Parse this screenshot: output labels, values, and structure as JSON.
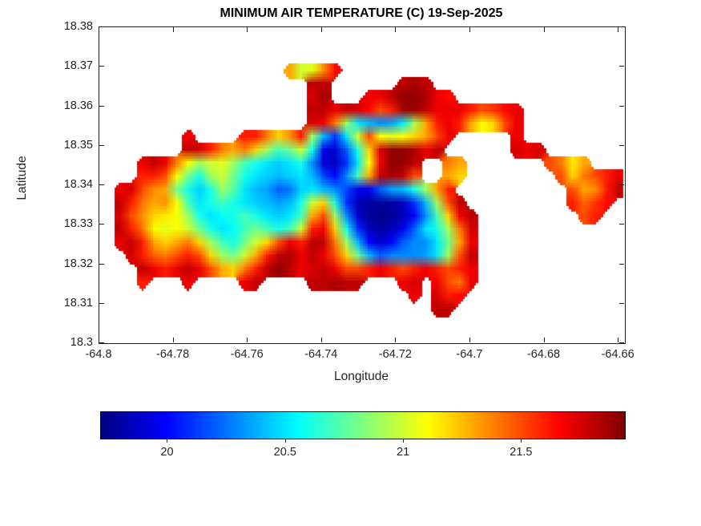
{
  "chart_data": {
    "type": "heatmap",
    "title": "MINIMUM AIR TEMPERATURE (C) 19-Sep-2025",
    "xlabel": "Longitude",
    "ylabel": "Latitude",
    "units": "C",
    "xlim": [
      -64.8,
      -64.6583
    ],
    "ylim": [
      18.3,
      18.38
    ],
    "grid_lines": "off",
    "xticks": {
      "values": [
        -64.8,
        -64.78,
        -64.76,
        -64.74,
        -64.72,
        -64.7,
        -64.68,
        -64.66
      ],
      "labels": [
        "-64.8",
        "-64.78",
        "-64.76",
        "-64.74",
        "-64.72",
        "-64.7",
        "-64.68",
        "-64.66"
      ]
    },
    "yticks": {
      "values": [
        18.3,
        18.31,
        18.32,
        18.33,
        18.34,
        18.35,
        18.36,
        18.37,
        18.38
      ],
      "labels": [
        "18.3",
        "18.31",
        "18.32",
        "18.33",
        "18.34",
        "18.35",
        "18.36",
        "18.37",
        "18.38"
      ]
    },
    "colorbar": {
      "orientation": "horizontal",
      "colormap": "jet",
      "range": [
        19.72,
        21.94
      ],
      "ticks": {
        "values": [
          20,
          20.5,
          21,
          21.5
        ],
        "labels": [
          "20",
          "20.5",
          "21",
          "21.5"
        ]
      }
    },
    "grid": {
      "comment": "Coarse sample of the temperature field (deg C); null = ocean (no data). Row 0 = north (lat_start), col 0 = west (lon_start).",
      "lon_start": -64.7975,
      "dlon": 0.00305,
      "lat_start": 18.3725,
      "dlat": 0.00335,
      "ncols": 46,
      "nrows": 22,
      "values": [
        [
          null,
          null,
          null,
          null,
          null,
          null,
          null,
          null,
          null,
          null,
          null,
          null,
          null,
          null,
          null,
          null,
          null,
          null,
          null,
          null,
          null,
          null,
          null,
          null,
          null,
          null,
          null,
          null,
          null,
          null,
          null,
          null,
          null,
          null,
          null,
          null,
          null,
          null,
          null,
          null,
          null,
          null,
          null,
          null,
          null,
          null
        ],
        [
          null,
          null,
          null,
          null,
          null,
          null,
          null,
          null,
          null,
          null,
          null,
          null,
          null,
          null,
          null,
          null,
          21.3,
          21.0,
          21.05,
          21.35,
          21.65,
          null,
          null,
          null,
          null,
          null,
          null,
          null,
          null,
          null,
          null,
          null,
          null,
          null,
          null,
          null,
          null,
          null,
          null,
          null,
          null,
          null,
          null,
          null,
          null,
          null
        ],
        [
          null,
          null,
          null,
          null,
          null,
          null,
          null,
          null,
          null,
          null,
          null,
          null,
          null,
          null,
          null,
          null,
          null,
          null,
          21.8,
          21.8,
          null,
          null,
          null,
          null,
          null,
          null,
          21.8,
          21.85,
          21.8,
          null,
          null,
          null,
          null,
          null,
          null,
          null,
          null,
          null,
          null,
          null,
          null,
          null,
          null,
          null,
          null,
          null
        ],
        [
          null,
          null,
          null,
          null,
          null,
          null,
          null,
          null,
          null,
          null,
          null,
          null,
          null,
          null,
          null,
          null,
          null,
          null,
          21.75,
          21.85,
          null,
          null,
          null,
          21.7,
          21.7,
          21.8,
          21.9,
          21.9,
          21.85,
          21.7,
          21.65,
          null,
          null,
          null,
          null,
          null,
          null,
          null,
          null,
          null,
          null,
          null,
          null,
          null,
          null,
          null
        ],
        [
          null,
          null,
          null,
          null,
          null,
          null,
          null,
          null,
          null,
          null,
          null,
          null,
          null,
          null,
          null,
          null,
          null,
          null,
          21.8,
          21.8,
          21.7,
          21.8,
          21.75,
          21.65,
          21.5,
          21.6,
          21.85,
          21.9,
          21.8,
          21.7,
          21.7,
          21.7,
          21.6,
          21.5,
          21.55,
          21.65,
          21.7,
          null,
          null,
          null,
          null,
          null,
          null,
          null,
          null,
          null
        ],
        [
          null,
          null,
          null,
          null,
          null,
          null,
          null,
          null,
          null,
          null,
          null,
          null,
          null,
          null,
          null,
          null,
          null,
          null,
          21.75,
          21.7,
          21.4,
          20.9,
          20.5,
          20.4,
          20.3,
          20.35,
          20.5,
          20.9,
          21.3,
          21.6,
          21.7,
          21.6,
          21.3,
          21.1,
          21.2,
          21.5,
          21.7,
          null,
          null,
          null,
          null,
          null,
          null,
          null,
          null,
          null
        ],
        [
          null,
          null,
          null,
          null,
          null,
          null,
          null,
          21.7,
          null,
          null,
          null,
          null,
          21.6,
          21.6,
          21.4,
          21.2,
          21.35,
          21.6,
          20.9,
          20.4,
          20.1,
          20.5,
          21.0,
          21.5,
          21.1,
          21.05,
          21.1,
          21.2,
          21.3,
          21.5,
          21.7,
          null,
          null,
          null,
          null,
          null,
          21.7,
          null,
          null,
          null,
          null,
          null,
          null,
          null,
          null,
          null
        ],
        [
          null,
          null,
          null,
          null,
          null,
          null,
          null,
          21.8,
          21.75,
          21.6,
          21.4,
          21.3,
          21.4,
          21.2,
          20.9,
          20.7,
          20.8,
          21.0,
          20.6,
          19.95,
          19.9,
          20.2,
          20.6,
          21.2,
          21.75,
          21.9,
          21.9,
          21.85,
          21.7,
          21.8,
          null,
          null,
          null,
          null,
          null,
          null,
          21.75,
          21.7,
          21.75,
          null,
          null,
          null,
          null,
          null,
          null,
          null
        ],
        [
          null,
          null,
          null,
          21.7,
          21.8,
          21.7,
          21.4,
          21.1,
          20.9,
          21.0,
          21.05,
          20.9,
          20.7,
          20.6,
          20.5,
          20.45,
          20.5,
          20.6,
          20.3,
          19.9,
          19.85,
          20.1,
          20.5,
          21.1,
          21.7,
          21.9,
          21.9,
          21.8,
          null,
          null,
          21.4,
          21.3,
          null,
          null,
          null,
          null,
          null,
          null,
          null,
          21.5,
          21.4,
          21.15,
          21.3,
          null,
          null,
          null
        ],
        [
          null,
          null,
          null,
          21.6,
          21.6,
          21.5,
          21.1,
          20.8,
          20.6,
          20.9,
          21.0,
          20.8,
          20.6,
          20.5,
          20.45,
          20.4,
          20.45,
          20.5,
          20.4,
          20.15,
          20.0,
          20.3,
          20.7,
          21.3,
          21.8,
          21.85,
          21.8,
          21.5,
          null,
          null,
          21.3,
          21.2,
          null,
          null,
          null,
          null,
          null,
          null,
          null,
          null,
          21.5,
          21.2,
          21.4,
          21.5,
          21.6,
          21.7
        ],
        [
          null,
          21.7,
          21.75,
          21.5,
          21.35,
          21.3,
          20.8,
          20.6,
          20.45,
          20.6,
          20.9,
          20.75,
          20.5,
          20.4,
          20.35,
          20.2,
          20.25,
          20.45,
          20.5,
          20.4,
          20.3,
          20.15,
          19.95,
          19.95,
          20.2,
          20.35,
          20.4,
          20.6,
          20.9,
          21.3,
          21.6,
          null,
          null,
          null,
          null,
          null,
          null,
          null,
          null,
          null,
          null,
          21.5,
          21.3,
          21.35,
          21.6,
          21.8
        ],
        [
          null,
          21.8,
          21.6,
          21.4,
          21.3,
          21.35,
          21.1,
          20.7,
          20.5,
          20.6,
          20.7,
          20.6,
          20.5,
          20.45,
          20.4,
          20.35,
          20.4,
          20.6,
          21.0,
          21.2,
          20.6,
          20.1,
          19.85,
          19.8,
          19.78,
          19.8,
          19.85,
          20.1,
          20.4,
          20.9,
          21.5,
          21.8,
          null,
          null,
          null,
          null,
          null,
          null,
          null,
          null,
          null,
          21.6,
          21.45,
          21.55,
          21.65,
          null
        ],
        [
          null,
          21.75,
          21.5,
          21.35,
          21.2,
          21.15,
          21.1,
          20.9,
          20.6,
          20.5,
          20.55,
          20.6,
          20.7,
          20.6,
          20.5,
          20.45,
          20.5,
          20.7,
          21.3,
          21.5,
          20.9,
          20.3,
          19.9,
          19.78,
          19.75,
          19.78,
          19.85,
          20.0,
          20.3,
          20.7,
          21.2,
          21.7,
          21.8,
          null,
          null,
          null,
          null,
          null,
          null,
          null,
          null,
          null,
          21.5,
          21.6,
          null,
          null
        ],
        [
          null,
          21.8,
          21.6,
          21.4,
          21.1,
          21.05,
          21.1,
          21.0,
          20.8,
          20.6,
          20.5,
          20.55,
          20.7,
          20.8,
          20.7,
          20.6,
          20.7,
          21.0,
          21.6,
          21.7,
          21.2,
          20.6,
          20.1,
          19.85,
          19.8,
          19.85,
          19.95,
          20.2,
          20.5,
          20.6,
          20.9,
          21.4,
          21.75,
          null,
          null,
          null,
          null,
          null,
          null,
          null,
          null,
          null,
          null,
          null,
          null,
          null
        ],
        [
          null,
          21.7,
          21.8,
          21.6,
          21.3,
          21.2,
          21.3,
          21.4,
          21.2,
          20.9,
          20.7,
          20.6,
          20.8,
          21.0,
          21.2,
          21.5,
          21.7,
          21.6,
          21.8,
          21.8,
          21.4,
          20.9,
          20.4,
          20.0,
          19.9,
          20.0,
          20.2,
          20.3,
          20.3,
          20.5,
          20.8,
          21.3,
          21.7,
          null,
          null,
          null,
          null,
          null,
          null,
          null,
          null,
          null,
          null,
          null,
          null,
          null
        ],
        [
          null,
          null,
          21.75,
          21.6,
          21.45,
          21.4,
          21.5,
          21.6,
          21.5,
          21.2,
          20.9,
          20.8,
          21.0,
          21.3,
          21.6,
          21.8,
          21.85,
          21.7,
          21.8,
          21.7,
          21.5,
          21.2,
          20.8,
          20.4,
          20.2,
          20.3,
          20.3,
          20.3,
          20.35,
          20.5,
          20.9,
          21.5,
          21.8,
          null,
          null,
          null,
          null,
          null,
          null,
          null,
          null,
          null,
          null,
          null,
          null,
          null
        ],
        [
          null,
          null,
          null,
          21.8,
          21.7,
          21.6,
          21.7,
          21.8,
          21.7,
          21.5,
          21.3,
          21.2,
          21.4,
          21.6,
          21.8,
          21.9,
          21.8,
          21.7,
          21.75,
          21.8,
          21.7,
          21.5,
          21.5,
          21.6,
          21.7,
          21.6,
          21.5,
          21.6,
          21.7,
          21.6,
          21.5,
          21.6,
          21.7,
          null,
          null,
          null,
          null,
          null,
          null,
          null,
          null,
          null,
          null,
          null,
          null,
          null
        ],
        [
          null,
          null,
          null,
          21.6,
          null,
          null,
          null,
          21.7,
          null,
          null,
          null,
          null,
          21.7,
          21.8,
          null,
          null,
          null,
          null,
          21.8,
          21.8,
          21.85,
          21.8,
          21.8,
          null,
          null,
          null,
          21.7,
          21.75,
          null,
          21.7,
          21.5,
          21.4,
          21.7,
          null,
          null,
          null,
          null,
          null,
          null,
          null,
          null,
          null,
          null,
          null,
          null,
          null
        ],
        [
          null,
          null,
          null,
          null,
          null,
          null,
          null,
          null,
          null,
          null,
          null,
          null,
          null,
          null,
          null,
          null,
          null,
          null,
          null,
          null,
          null,
          null,
          null,
          null,
          null,
          null,
          null,
          21.7,
          null,
          21.75,
          21.6,
          21.65,
          null,
          null,
          null,
          null,
          null,
          null,
          null,
          null,
          null,
          null,
          null,
          null,
          null,
          null
        ],
        [
          null,
          null,
          null,
          null,
          null,
          null,
          null,
          null,
          null,
          null,
          null,
          null,
          null,
          null,
          null,
          null,
          null,
          null,
          null,
          null,
          null,
          null,
          null,
          null,
          null,
          null,
          null,
          null,
          null,
          21.8,
          21.8,
          null,
          null,
          null,
          null,
          null,
          null,
          null,
          null,
          null,
          null,
          null,
          null,
          null,
          null,
          null
        ],
        [
          null,
          null,
          null,
          null,
          null,
          null,
          null,
          null,
          null,
          null,
          null,
          null,
          null,
          null,
          null,
          null,
          null,
          null,
          null,
          null,
          null,
          null,
          null,
          null,
          null,
          null,
          null,
          null,
          null,
          null,
          null,
          null,
          null,
          null,
          null,
          null,
          null,
          null,
          null,
          null,
          null,
          null,
          null,
          null,
          null,
          null
        ],
        [
          null,
          null,
          null,
          null,
          null,
          null,
          null,
          null,
          null,
          null,
          null,
          null,
          null,
          null,
          null,
          null,
          null,
          null,
          null,
          null,
          null,
          null,
          null,
          null,
          null,
          null,
          null,
          null,
          null,
          null,
          null,
          null,
          null,
          null,
          null,
          null,
          null,
          null,
          null,
          null,
          null,
          null,
          null,
          null,
          null,
          null
        ]
      ]
    },
    "colors": {
      "axis": "#262626",
      "title": "#000000",
      "background": "#ffffff"
    }
  }
}
